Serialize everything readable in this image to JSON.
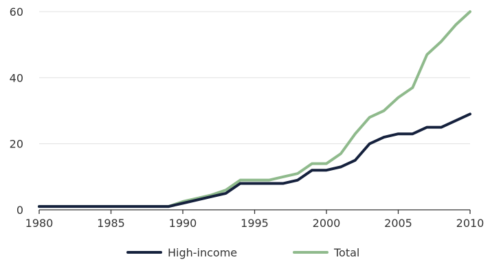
{
  "chart_data": {
    "type": "line",
    "x": [
      1980,
      1981,
      1982,
      1983,
      1984,
      1985,
      1986,
      1987,
      1988,
      1989,
      1990,
      1991,
      1992,
      1993,
      1994,
      1995,
      1996,
      1997,
      1998,
      1999,
      2000,
      2001,
      2002,
      2003,
      2004,
      2005,
      2006,
      2007,
      2008,
      2009,
      2010
    ],
    "series": [
      {
        "name": "Total",
        "color": "#8fba8c",
        "values": [
          1,
          1,
          1,
          1,
          1,
          1,
          1,
          1,
          1,
          1,
          2.5,
          3.5,
          4.5,
          6,
          9,
          9,
          9,
          10,
          11,
          14,
          14,
          17,
          23,
          28,
          30,
          34,
          37,
          47,
          51,
          56,
          60
        ]
      },
      {
        "name": "High-income",
        "color": "#15213d",
        "values": [
          1,
          1,
          1,
          1,
          1,
          1,
          1,
          1,
          1,
          1,
          2,
          3,
          4,
          5,
          8,
          8,
          8,
          8,
          9,
          12,
          12,
          13,
          15,
          20,
          22,
          23,
          23,
          25,
          25,
          27,
          29
        ]
      }
    ],
    "x_ticks": [
      1980,
      1985,
      1990,
      1995,
      2000,
      2005,
      2010
    ],
    "y_ticks": [
      0,
      20,
      40,
      60
    ],
    "xlim": [
      1980,
      2010
    ],
    "ylim": [
      0,
      60
    ],
    "grid": "horizontal",
    "legend": {
      "placement": "bottom",
      "order": [
        "High-income",
        "Total"
      ]
    },
    "title": "",
    "xlabel": "",
    "ylabel": ""
  }
}
